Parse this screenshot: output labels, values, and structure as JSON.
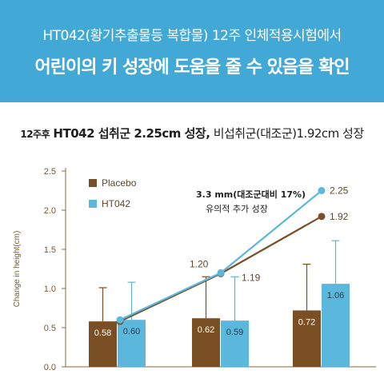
{
  "banner": {
    "line1": "HT042(황기추출물등 복합물) 12주 인체적용시험에서",
    "line2": "어린이의 키 성장에 도움을 줄 수 있음을 확인"
  },
  "headline": {
    "prefix": "12주후",
    "strong": "HT042 섭취군 2.25cm 성장,",
    "rest": "비섭취군(대조군)1.92cm 성장"
  },
  "colors": {
    "placebo": "#7b4f24",
    "ht042": "#5bb8dc",
    "banner": "#42a9d6"
  },
  "chart_data": {
    "type": "bar",
    "ylabel": "Change in height(cm)",
    "ylim": [
      0,
      2.5
    ],
    "yticks": [
      "0.0",
      "0.5",
      "1.0",
      "1.5",
      "2.0",
      "2.5"
    ],
    "categories": [
      "",
      "",
      ""
    ],
    "series": [
      {
        "name": "Placebo",
        "values": [
          0.58,
          0.62,
          0.72
        ],
        "labels": [
          "0.58",
          "0.62",
          "0.72"
        ],
        "error_upper": [
          1.01,
          1.15,
          1.31
        ]
      },
      {
        "name": "HT042",
        "values": [
          0.6,
          0.59,
          1.06
        ],
        "labels": [
          "0.60",
          "0.59",
          "1.06"
        ],
        "error_upper": [
          1.08,
          1.15,
          1.61
        ]
      }
    ],
    "cumulative_lines": [
      {
        "name": "Placebo",
        "values": [
          0.58,
          1.19,
          1.92
        ],
        "labels": [
          "",
          "1.19",
          "1.92"
        ]
      },
      {
        "name": "HT042",
        "values": [
          0.6,
          1.2,
          2.25
        ],
        "labels": [
          "",
          "1.20",
          "2.25"
        ]
      }
    ],
    "annotation": {
      "line1": "3.3 mm(대조군대비 17%)",
      "line2": "유의적 추가 성장"
    },
    "legend_position": "top-left"
  }
}
